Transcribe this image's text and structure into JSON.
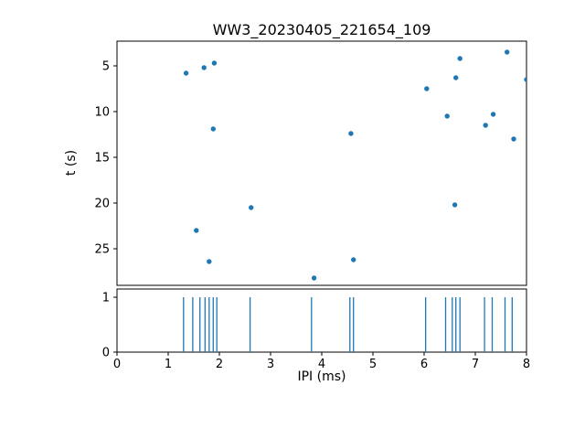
{
  "chart_data": {
    "type": "scatter",
    "title": "WW3_20230405_221654_109",
    "marker_color": "#1f77b4",
    "line_color": "#1f77b4",
    "top_plot": {
      "ylabel": "t (s)",
      "y_ticks": [
        5,
        10,
        15,
        20,
        25
      ],
      "ylim": [
        2.3,
        29.0
      ],
      "y_inverted": true,
      "xlim": [
        0,
        8
      ],
      "points": [
        [
          1.35,
          5.8
        ],
        [
          1.7,
          5.2
        ],
        [
          1.9,
          4.7
        ],
        [
          1.88,
          11.9
        ],
        [
          1.55,
          23.0
        ],
        [
          1.8,
          26.4
        ],
        [
          2.62,
          20.5
        ],
        [
          3.85,
          28.2
        ],
        [
          4.57,
          12.4
        ],
        [
          4.62,
          26.2
        ],
        [
          6.05,
          7.5
        ],
        [
          6.45,
          10.5
        ],
        [
          6.62,
          6.3
        ],
        [
          6.7,
          4.2
        ],
        [
          6.6,
          20.2
        ],
        [
          7.2,
          11.5
        ],
        [
          7.35,
          10.3
        ],
        [
          7.62,
          3.5
        ],
        [
          7.75,
          13.0
        ],
        [
          8.0,
          6.5
        ]
      ]
    },
    "bottom_plot": {
      "xlabel": "IPI (ms)",
      "x_ticks": [
        0,
        1,
        2,
        3,
        4,
        5,
        6,
        7,
        8
      ],
      "xlim": [
        0,
        8
      ],
      "y_ticks": [
        0,
        1
      ],
      "ylim": [
        0,
        1.15
      ],
      "event_height": 1,
      "event_x": [
        1.3,
        1.48,
        1.62,
        1.72,
        1.8,
        1.88,
        1.95,
        2.6,
        3.8,
        4.55,
        4.62,
        6.03,
        6.42,
        6.55,
        6.62,
        6.7,
        7.18,
        7.33,
        7.58,
        7.72
      ]
    }
  }
}
